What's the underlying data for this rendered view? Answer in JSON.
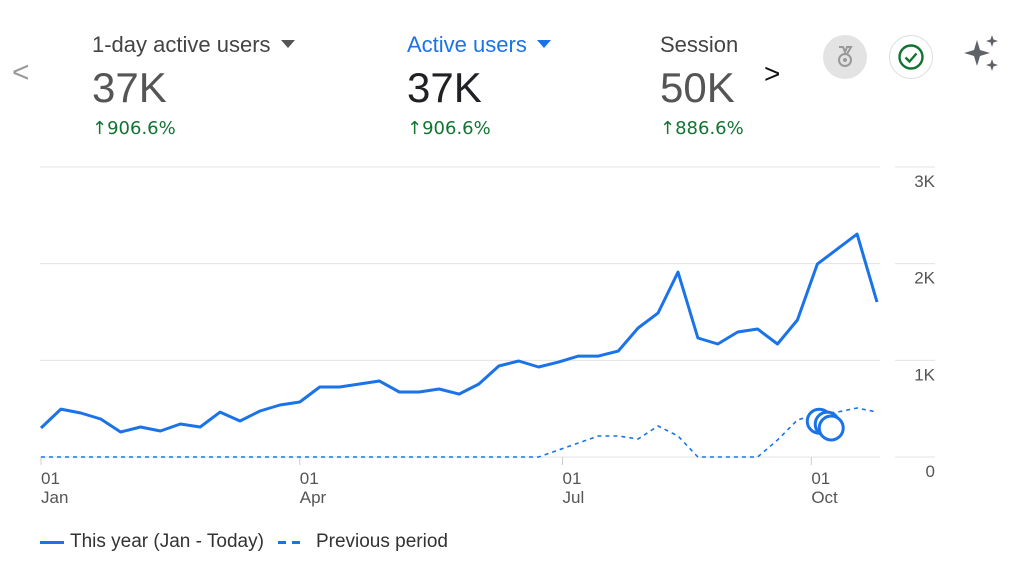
{
  "header": {
    "prev_label": "<",
    "next_label": ">",
    "metrics": [
      {
        "label": "1-day active users",
        "value": "37K",
        "change": "906.6%",
        "selected": false
      },
      {
        "label": "Active users",
        "value": "37K",
        "change": "906.6%",
        "selected": true
      },
      {
        "label": "Session",
        "value": "50K",
        "change": "886.6%",
        "selected": false
      }
    ],
    "icons": [
      "medal-icon",
      "check-circle-icon",
      "sparkle-icon"
    ]
  },
  "colors": {
    "accent": "#1a73e8",
    "positive": "#137333",
    "grid": "#e0e0e0"
  },
  "chart_data": {
    "type": "line",
    "title": "",
    "xlabel": "",
    "ylabel": "",
    "ylim": [
      0,
      3000
    ],
    "yticks": [
      {
        "value": 0,
        "label": "0"
      },
      {
        "value": 1000,
        "label": "1K"
      },
      {
        "value": 2000,
        "label": "2K"
      },
      {
        "value": 3000,
        "label": "3K"
      }
    ],
    "xticks": [
      {
        "index": 0,
        "day": "01",
        "month": "Jan"
      },
      {
        "index": 13,
        "day": "01",
        "month": "Apr"
      },
      {
        "index": 26.2,
        "day": "01",
        "month": "Jul"
      },
      {
        "index": 38.7,
        "day": "01",
        "month": "Oct"
      }
    ],
    "grid": true,
    "legend_position": "bottom-left",
    "series": [
      {
        "name": "This year (Jan - Today)",
        "style": "solid",
        "values": [
          300,
          496,
          455,
          393,
          259,
          310,
          269,
          341,
          310,
          465,
          372,
          476,
          538,
          569,
          724,
          724,
          755,
          786,
          672,
          672,
          703,
          651,
          755,
          941,
          993,
          931,
          982,
          1044,
          1044,
          1096,
          1334,
          1489,
          1913,
          1231,
          1169,
          1293,
          1324,
          1169,
          1417,
          1996,
          2151,
          2306,
          1603
        ]
      },
      {
        "name": "Previous period",
        "style": "dashed",
        "values": [
          0,
          0,
          0,
          0,
          0,
          0,
          0,
          0,
          0,
          0,
          0,
          0,
          0,
          0,
          0,
          0,
          0,
          0,
          0,
          0,
          0,
          0,
          0,
          0,
          0,
          0,
          72,
          145,
          217,
          217,
          186,
          321,
          217,
          0,
          0,
          0,
          0,
          176,
          383,
          445,
          465,
          507,
          465
        ]
      }
    ],
    "annotations": [
      {
        "index": 39.1,
        "value": 370
      },
      {
        "index": 39.5,
        "value": 340
      },
      {
        "index": 39.7,
        "value": 300
      }
    ]
  }
}
